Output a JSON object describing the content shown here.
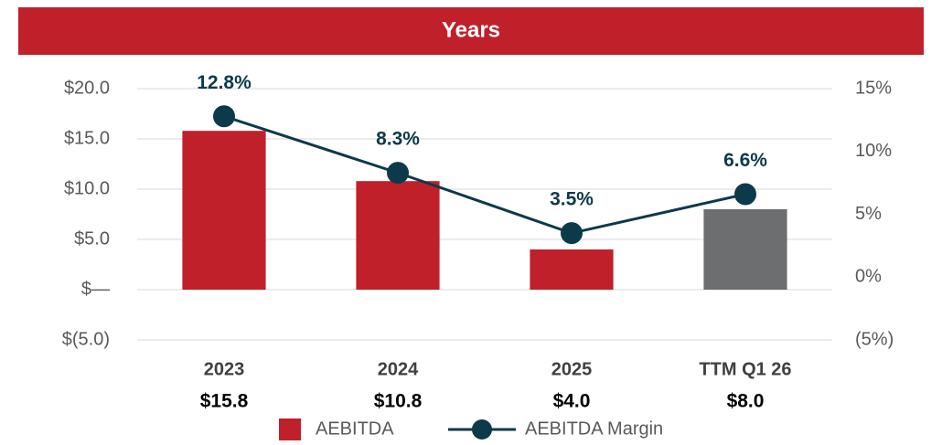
{
  "chart_data": {
    "type": "bar",
    "title": "Years",
    "categories": [
      "2023",
      "2024",
      "2025",
      "TTM Q1 26"
    ],
    "series": [
      {
        "name": "AEBITDA",
        "type": "bar",
        "color": "#c0202a",
        "colors": [
          "#c0202a",
          "#c0202a",
          "#c0202a",
          "#6d6e70"
        ],
        "values": [
          15.8,
          10.8,
          4.0,
          8.0
        ],
        "value_labels": [
          "$15.8",
          "$10.8",
          "$4.0",
          "$8.0"
        ]
      },
      {
        "name": "AEBITDA Margin",
        "type": "line",
        "axis": "y2",
        "color": "#0d3a4a",
        "values": [
          12.8,
          8.3,
          3.5,
          6.6
        ],
        "value_labels": [
          "12.8%",
          "8.3%",
          "3.5%",
          "6.6%"
        ]
      }
    ],
    "ylim": [
      -5,
      20
    ],
    "yticks": [
      {
        "value": -5,
        "label": "$(5.0)"
      },
      {
        "value": 0,
        "label": "$—"
      },
      {
        "value": 5,
        "label": "$5.0"
      },
      {
        "value": 10,
        "label": "$10.0"
      },
      {
        "value": 15,
        "label": "$15.0"
      },
      {
        "value": 20,
        "label": "$20.0"
      }
    ],
    "y2lim": [
      -5,
      15
    ],
    "y2ticks": [
      {
        "value": -5,
        "label": "(5%)"
      },
      {
        "value": 0,
        "label": "0%"
      },
      {
        "value": 5,
        "label": "5%"
      },
      {
        "value": 10,
        "label": "10%"
      },
      {
        "value": 15,
        "label": "15%"
      }
    ],
    "grid": true,
    "legend": "bottom"
  }
}
